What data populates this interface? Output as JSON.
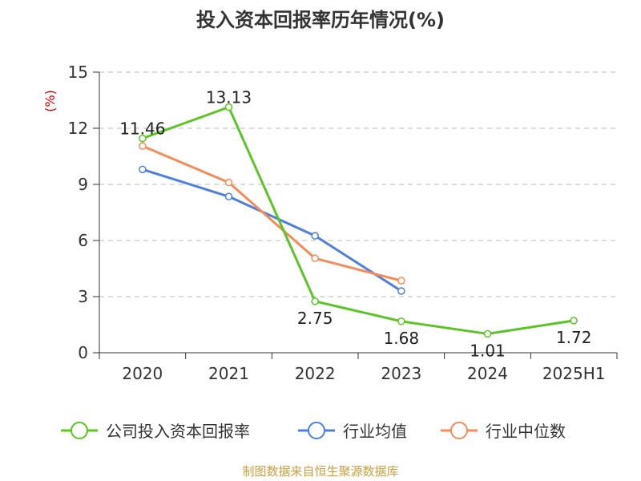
{
  "chart_data": {
    "type": "line",
    "title": "投入资本回报率历年情况(%)",
    "ylabel": "(%)",
    "xlabel": "",
    "categories": [
      "2020",
      "2021",
      "2022",
      "2023",
      "2024",
      "2025H1"
    ],
    "ylim": [
      0,
      15
    ],
    "yticks": [
      0,
      3,
      6,
      9,
      12,
      15
    ],
    "grid": true,
    "legend_position": "bottom",
    "series": [
      {
        "name": "公司投入资本回报率",
        "color": "#5cc426",
        "values": [
          11.46,
          13.13,
          2.75,
          1.68,
          1.01,
          1.72
        ],
        "labels": [
          "11.46",
          "13.13",
          "2.75",
          "1.68",
          "1.01",
          "1.72"
        ]
      },
      {
        "name": "行业均值",
        "color": "#4f7fdc",
        "values": [
          9.8,
          8.35,
          6.25,
          3.3,
          null,
          null
        ]
      },
      {
        "name": "行业中位数",
        "color": "#f28c5a",
        "values": [
          11.05,
          9.1,
          5.05,
          3.85,
          null,
          null
        ]
      }
    ]
  },
  "footer": {
    "source": "制图数据来自恒生聚源数据库"
  }
}
